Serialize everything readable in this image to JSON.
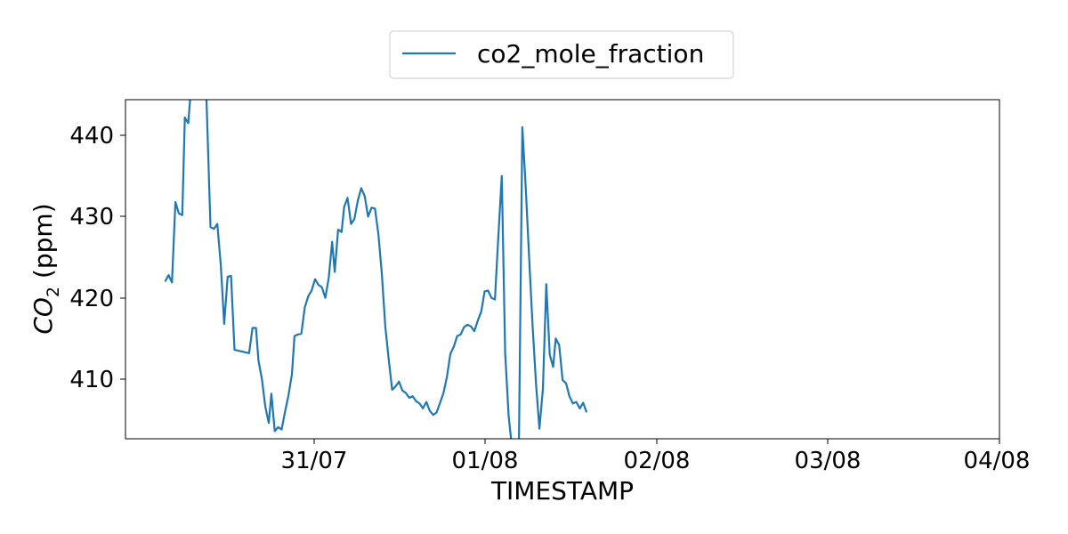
{
  "chart_data": {
    "type": "line",
    "xlabel": "TIMESTAMP",
    "ylabel": "CO",
    "ylabel_subscript": "2",
    "ylabel_suffix": " (ppm)",
    "x_tick_labels": [
      "31/07",
      "01/08",
      "02/08",
      "03/08",
      "04/08"
    ],
    "y_tick_labels": [
      "410",
      "420",
      "430",
      "440"
    ],
    "ylim": [
      402.8,
      444.5
    ],
    "grid": false,
    "legend_position": "top-center",
    "series": [
      {
        "name": "co2_mole_fraction",
        "color": "#1f77b4",
        "x_unit": "days since 30/07 00:00",
        "points": [
          [
            0.13,
            422.0
          ],
          [
            0.15,
            422.8
          ],
          [
            0.17,
            421.9
          ],
          [
            0.19,
            431.8
          ],
          [
            0.21,
            430.4
          ],
          [
            0.23,
            430.2
          ],
          [
            0.245,
            442.2
          ],
          [
            0.265,
            441.5
          ],
          [
            0.28,
            445.5
          ],
          [
            0.37,
            445.5
          ],
          [
            0.395,
            428.7
          ],
          [
            0.415,
            428.5
          ],
          [
            0.435,
            429.1
          ],
          [
            0.455,
            424.0
          ],
          [
            0.475,
            416.8
          ],
          [
            0.495,
            422.6
          ],
          [
            0.515,
            422.7
          ],
          [
            0.535,
            413.6
          ],
          [
            0.62,
            413.2
          ],
          [
            0.64,
            416.3
          ],
          [
            0.66,
            416.3
          ],
          [
            0.675,
            412.3
          ],
          [
            0.695,
            410.0
          ],
          [
            0.715,
            406.6
          ],
          [
            0.735,
            404.6
          ],
          [
            0.75,
            408.2
          ],
          [
            0.77,
            403.6
          ],
          [
            0.79,
            404.1
          ],
          [
            0.81,
            403.8
          ],
          [
            0.83,
            406.0
          ],
          [
            0.85,
            408.0
          ],
          [
            0.87,
            410.6
          ],
          [
            0.885,
            415.3
          ],
          [
            0.905,
            415.5
          ],
          [
            0.925,
            415.6
          ],
          [
            0.945,
            418.8
          ],
          [
            0.965,
            420.2
          ],
          [
            0.985,
            420.9
          ],
          [
            1.005,
            422.3
          ],
          [
            1.025,
            421.6
          ],
          [
            1.045,
            421.3
          ],
          [
            1.065,
            420.0
          ],
          [
            1.085,
            422.5
          ],
          [
            1.105,
            426.9
          ],
          [
            1.12,
            423.2
          ],
          [
            1.14,
            428.4
          ],
          [
            1.16,
            428.1
          ],
          [
            1.175,
            431.2
          ],
          [
            1.195,
            432.3
          ],
          [
            1.215,
            429.1
          ],
          [
            1.235,
            429.7
          ],
          [
            1.255,
            432.0
          ],
          [
            1.275,
            433.5
          ],
          [
            1.295,
            432.5
          ],
          [
            1.315,
            430.0
          ],
          [
            1.335,
            431.1
          ],
          [
            1.355,
            431.0
          ],
          [
            1.375,
            427.8
          ],
          [
            1.395,
            423.0
          ],
          [
            1.415,
            416.5
          ],
          [
            1.435,
            412.5
          ],
          [
            1.455,
            408.7
          ],
          [
            1.475,
            409.1
          ],
          [
            1.495,
            409.7
          ],
          [
            1.515,
            408.6
          ],
          [
            1.535,
            408.3
          ],
          [
            1.555,
            407.7
          ],
          [
            1.575,
            407.9
          ],
          [
            1.595,
            407.3
          ],
          [
            1.615,
            407.0
          ],
          [
            1.635,
            406.4
          ],
          [
            1.655,
            407.2
          ],
          [
            1.675,
            406.1
          ],
          [
            1.695,
            405.6
          ],
          [
            1.715,
            405.9
          ],
          [
            1.735,
            407.1
          ],
          [
            1.755,
            408.3
          ],
          [
            1.775,
            410.3
          ],
          [
            1.795,
            413.1
          ],
          [
            1.815,
            414.0
          ],
          [
            1.835,
            415.3
          ],
          [
            1.855,
            415.5
          ],
          [
            1.875,
            416.4
          ],
          [
            1.895,
            416.7
          ],
          [
            1.915,
            416.5
          ],
          [
            1.935,
            415.9
          ],
          [
            1.955,
            417.2
          ],
          [
            1.975,
            418.3
          ],
          [
            1.995,
            420.8
          ],
          [
            2.015,
            420.9
          ],
          [
            2.035,
            420.0
          ],
          [
            2.055,
            419.8
          ],
          [
            2.075,
            427.5
          ],
          [
            2.095,
            435.0
          ],
          [
            2.115,
            413.2
          ],
          [
            2.135,
            405.5
          ],
          [
            2.155,
            401.5
          ],
          [
            2.195,
            401.5
          ],
          [
            2.215,
            441.0
          ],
          [
            2.235,
            433.6
          ],
          [
            2.255,
            424.8
          ],
          [
            2.275,
            416.6
          ],
          [
            2.295,
            409.4
          ],
          [
            2.315,
            403.9
          ],
          [
            2.335,
            408.8
          ],
          [
            2.355,
            421.7
          ],
          [
            2.375,
            413.0
          ],
          [
            2.395,
            411.5
          ],
          [
            2.41,
            415.0
          ],
          [
            2.43,
            414.2
          ],
          [
            2.45,
            409.9
          ],
          [
            2.47,
            409.5
          ],
          [
            2.49,
            407.9
          ],
          [
            2.51,
            407.0
          ],
          [
            2.53,
            407.2
          ],
          [
            2.55,
            406.4
          ],
          [
            2.57,
            407.1
          ],
          [
            2.59,
            405.9
          ]
        ]
      }
    ]
  }
}
